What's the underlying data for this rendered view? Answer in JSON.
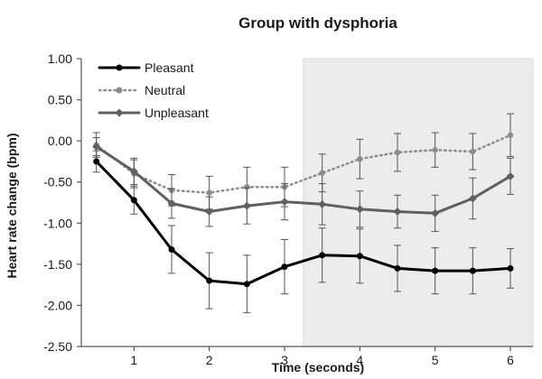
{
  "chart_data": {
    "type": "line",
    "title": "Group with dysphoria",
    "xlabel": "Time (seconds)",
    "ylabel": "Heart rate change (bpm)",
    "x": [
      0.5,
      1.0,
      1.5,
      2.0,
      2.5,
      3.0,
      3.5,
      4.0,
      4.5,
      5.0,
      5.5,
      6.0
    ],
    "xlim": [
      0.3,
      6.3
    ],
    "xticks": [
      1,
      2,
      3,
      4,
      5,
      6
    ],
    "xtick_labels": [
      "1",
      "2",
      "3",
      "4",
      "5",
      "6"
    ],
    "ylim": [
      -2.5,
      1.0
    ],
    "yticks": [
      1.0,
      0.5,
      0.0,
      -0.5,
      -1.0,
      -1.5,
      -2.0,
      -2.5
    ],
    "ytick_labels": [
      "1.00",
      "0.50",
      "0.00",
      "-0.50",
      "-1.00",
      "-1.50",
      "-2.00",
      "-2.50"
    ],
    "grid": false,
    "legend_position": "top-left",
    "shaded_region": {
      "x_from": 3.25,
      "x_to": 6.3,
      "color": "#ececec"
    },
    "series": [
      {
        "name": "Pleasant",
        "color": "#000000",
        "style": "solid",
        "values": [
          -0.25,
          -0.72,
          -1.32,
          -1.7,
          -1.74,
          -1.53,
          -1.39,
          -1.4,
          -1.55,
          -1.58,
          -1.58,
          -1.55
        ],
        "errors": [
          0.13,
          0.17,
          0.29,
          0.34,
          0.35,
          0.33,
          0.33,
          0.33,
          0.28,
          0.28,
          0.28,
          0.24
        ]
      },
      {
        "name": "Neutral",
        "color": "#8c8c8c",
        "style": "dotted",
        "values": [
          -0.05,
          -0.4,
          -0.6,
          -0.63,
          -0.56,
          -0.56,
          -0.39,
          -0.22,
          -0.14,
          -0.11,
          -0.13,
          0.07
        ],
        "errors": [
          0.15,
          0.17,
          0.19,
          0.2,
          0.24,
          0.24,
          0.23,
          0.24,
          0.23,
          0.21,
          0.22,
          0.26
        ]
      },
      {
        "name": "Unpleasant",
        "color": "#606060",
        "style": "solid",
        "values": [
          -0.07,
          -0.37,
          -0.76,
          -0.86,
          -0.79,
          -0.74,
          -0.77,
          -0.83,
          -0.86,
          -0.88,
          -0.7,
          -0.43
        ],
        "errors": [
          0.11,
          0.16,
          0.18,
          0.18,
          0.22,
          0.22,
          0.25,
          0.22,
          0.2,
          0.22,
          0.25,
          0.22
        ]
      }
    ]
  }
}
